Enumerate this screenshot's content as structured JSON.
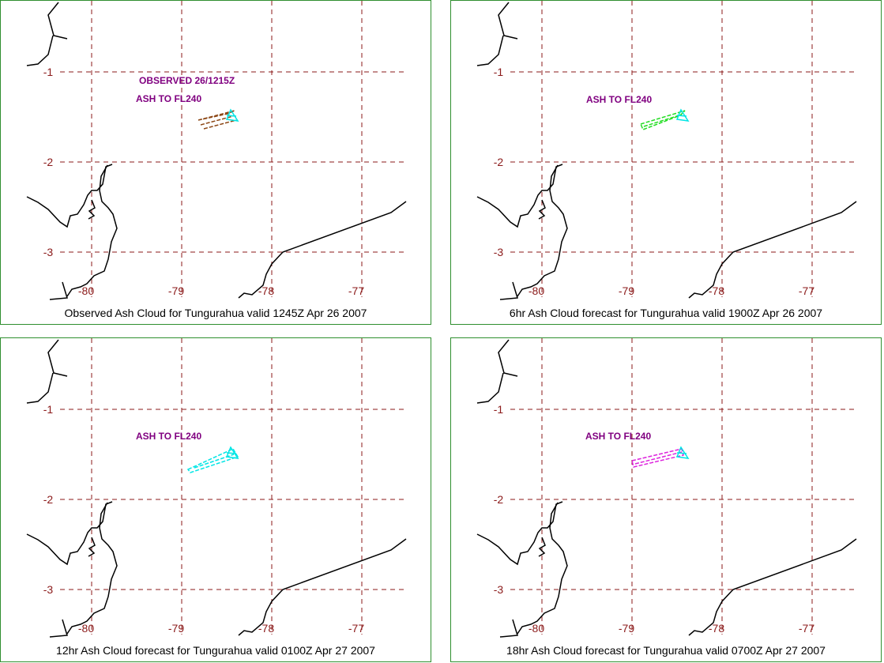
{
  "colors": {
    "grid": "#8b1a1a",
    "label": "#8b1a1a",
    "annotation": "#800080",
    "coast": "#000000",
    "frame": "#2f8f2f"
  },
  "map": {
    "lon_labels": [
      "-80",
      "-79",
      "-78",
      "-77"
    ],
    "lat_labels": [
      "-1",
      "-2",
      "-3"
    ]
  },
  "panels": [
    {
      "caption": "Observed Ash Cloud for Tungurahua valid 1245Z Apr 26 2007",
      "annotations": [
        "OBSERVED 26/1215Z",
        "ASH TO FL240"
      ],
      "cloud_color": "#8b4513"
    },
    {
      "caption": "6hr Ash Cloud forecast for Tungurahua valid 1900Z Apr 26 2007",
      "annotations": [
        "ASH TO FL240"
      ],
      "cloud_color": "#22dd22"
    },
    {
      "caption": "12hr Ash Cloud forecast for Tungurahua valid 0100Z Apr 27 2007",
      "annotations": [
        "ASH TO FL240"
      ],
      "cloud_color": "#00e5e5"
    },
    {
      "caption": "18hr Ash Cloud forecast for Tungurahua valid 0700Z Apr 27 2007",
      "annotations": [
        "ASH TO FL240"
      ],
      "cloud_color": "#dd22dd"
    }
  ]
}
